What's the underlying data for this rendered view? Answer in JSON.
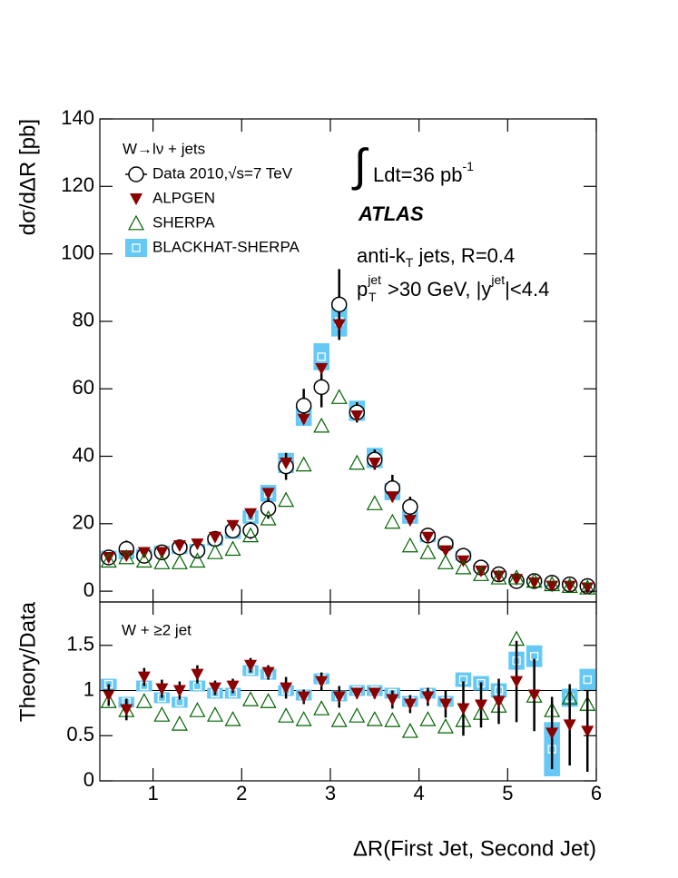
{
  "chart_data": [
    {
      "type": "scatter",
      "ylabel": "dσ/dΔR [pb]",
      "legend_title": "W→lν + jets",
      "annotations": {
        "lumi": [
          "∫",
          "Ldt=36 pb",
          "-1"
        ],
        "experiment": "ATLAS",
        "algo": [
          "anti-k",
          "T",
          " jets, R=0.4"
        ],
        "cuts": [
          "p",
          "jet",
          "T",
          ">30 GeV, |y",
          "jet",
          "|<4.4"
        ]
      },
      "x": [
        0.5,
        0.7,
        0.9,
        1.1,
        1.3,
        1.5,
        1.7,
        1.9,
        2.1,
        2.3,
        2.5,
        2.7,
        2.9,
        3.1,
        3.3,
        3.5,
        3.7,
        3.9,
        4.1,
        4.3,
        4.5,
        4.7,
        4.9,
        5.1,
        5.3,
        5.5,
        5.7,
        5.9
      ],
      "bins": [
        0.4,
        0.6,
        0.8,
        1.0,
        1.2,
        1.4,
        1.6,
        1.8,
        2.0,
        2.2,
        2.4,
        2.6,
        2.8,
        3.0,
        3.2,
        3.4,
        3.6,
        3.8,
        4.0,
        4.2,
        4.4,
        4.6,
        4.8,
        5.0,
        5.2,
        5.4,
        5.6,
        5.8,
        6.0
      ],
      "xlim": [
        0.4,
        6
      ],
      "xticks": [
        1,
        2,
        3,
        4,
        5,
        6
      ],
      "ylim": [
        -3.2,
        140
      ],
      "yticks": [
        0,
        20,
        40,
        60,
        80,
        100,
        120,
        140
      ],
      "series": [
        {
          "name": "Data 2010,√s=7 TeV",
          "marker": "circle",
          "color": "#000000",
          "values": [
            10,
            12.5,
            10.5,
            11.5,
            13,
            12,
            15.5,
            18,
            18,
            24.5,
            37,
            55,
            60.5,
            85,
            53,
            39,
            30.5,
            25,
            16.5,
            14,
            10.5,
            7,
            5,
            3,
            3,
            2.5,
            2,
            1.5
          ],
          "errors": [
            1.5,
            2.5,
            1.5,
            1.5,
            1.5,
            1.5,
            1.5,
            2,
            2.5,
            3,
            4,
            5,
            6,
            10.5,
            3,
            3,
            4,
            3,
            1.5,
            2,
            1.5,
            1,
            1,
            1,
            1,
            1,
            0.8,
            0.8
          ]
        },
        {
          "name": "ALPGEN",
          "marker": "triangle-down",
          "color": "#8b0000",
          "values": [
            10,
            10.5,
            11.5,
            11.5,
            13.5,
            14,
            16,
            19.5,
            23,
            29,
            38,
            51,
            66,
            79,
            52,
            38,
            28,
            21,
            16,
            12,
            9,
            6,
            4.5,
            3.5,
            2.5,
            1.5,
            1.5,
            1
          ]
        },
        {
          "name": "SHERPA",
          "marker": "triangle-up",
          "color": "#006400",
          "values": [
            9,
            10,
            9,
            8.5,
            8.5,
            9,
            11.5,
            12.5,
            16.5,
            21.5,
            27,
            37.5,
            49,
            57.5,
            38,
            26,
            20.5,
            13.5,
            11.5,
            8.5,
            7,
            5,
            4,
            4,
            3,
            2,
            1.5,
            1
          ]
        },
        {
          "name": "BLACKHAT-SHERPA",
          "marker": "band-square",
          "color": "#66c8f4",
          "values": [
            10.5,
            11,
            11,
            12,
            12.5,
            12.5,
            15,
            17.5,
            22,
            29,
            38,
            52,
            69.5,
            80,
            53.5,
            39.5,
            29.5,
            22,
            16,
            14,
            10.5,
            7,
            5,
            3,
            3,
            1.5,
            2,
            1.5
          ],
          "errors": [
            1.5,
            1.5,
            1.5,
            1.5,
            1.5,
            1.5,
            1.5,
            2,
            2,
            2.5,
            3,
            3,
            4,
            4.5,
            3,
            3,
            2.5,
            2,
            1.5,
            1.5,
            1.5,
            1,
            1,
            0.8,
            0.8,
            0.6,
            0.6,
            0.6
          ]
        }
      ]
    },
    {
      "type": "scatter",
      "ylabel": "Theory/Data",
      "xlabel": "ΔR(First Jet, Second Jet)",
      "annotation": "W + ≥2 jet",
      "x": [
        0.5,
        0.7,
        0.9,
        1.1,
        1.3,
        1.5,
        1.7,
        1.9,
        2.1,
        2.3,
        2.5,
        2.7,
        2.9,
        3.1,
        3.3,
        3.5,
        3.7,
        3.9,
        4.1,
        4.3,
        4.5,
        4.7,
        4.9,
        5.1,
        5.3,
        5.5,
        5.7,
        5.9
      ],
      "bins": [
        0.4,
        0.6,
        0.8,
        1.0,
        1.2,
        1.4,
        1.6,
        1.8,
        2.0,
        2.2,
        2.4,
        2.6,
        2.8,
        3.0,
        3.2,
        3.4,
        3.6,
        3.8,
        4.0,
        4.2,
        4.4,
        4.6,
        4.8,
        5.0,
        5.2,
        5.4,
        5.6,
        5.8,
        6.0
      ],
      "xlim": [
        0.4,
        6
      ],
      "xticks": [
        1,
        2,
        3,
        4,
        5,
        6
      ],
      "ylim": [
        0,
        1.98
      ],
      "yticks": [
        0,
        0.5,
        1,
        1.5
      ],
      "reference": 1,
      "series": [
        {
          "marker": "band-square",
          "color": "#66c8f4",
          "values": [
            1.07,
            0.87,
            1.05,
            0.92,
            0.87,
            1.05,
            0.97,
            0.97,
            1.22,
            1.18,
            1.0,
            0.95,
            1.13,
            0.94,
            1.0,
            1.0,
            0.97,
            0.88,
            0.97,
            0.88,
            1.12,
            1.08,
            1.0,
            1.33,
            1.38,
            0.35,
            0.92,
            1.12
          ],
          "errors": [
            0.06,
            0.06,
            0.06,
            0.06,
            0.06,
            0.06,
            0.06,
            0.06,
            0.06,
            0.06,
            0.06,
            0.06,
            0.06,
            0.06,
            0.06,
            0.06,
            0.06,
            0.06,
            0.06,
            0.06,
            0.08,
            0.08,
            0.08,
            0.1,
            0.12,
            0.3,
            0.1,
            0.12
          ]
        },
        {
          "marker": "triangle-up",
          "color": "#006400",
          "values": [
            0.88,
            0.78,
            0.88,
            0.73,
            0.63,
            0.78,
            0.73,
            0.68,
            0.9,
            0.88,
            0.72,
            0.68,
            0.8,
            0.67,
            0.72,
            0.68,
            0.67,
            0.55,
            0.68,
            0.6,
            0.67,
            0.75,
            0.83,
            1.57,
            0.94,
            0.78,
            0.92,
            0.85
          ]
        },
        {
          "marker": "triangle-down",
          "color": "#8b0000",
          "values": [
            0.95,
            0.79,
            1.15,
            1.02,
            1.0,
            1.18,
            1.03,
            1.05,
            1.28,
            1.2,
            1.03,
            0.93,
            1.1,
            0.93,
            0.97,
            0.97,
            0.9,
            0.85,
            0.93,
            0.85,
            0.8,
            0.84,
            0.88,
            1.1,
            0.95,
            0.53,
            0.62,
            0.55
          ],
          "errors": [
            0.12,
            0.12,
            0.1,
            0.1,
            0.1,
            0.1,
            0.08,
            0.08,
            0.08,
            0.08,
            0.12,
            0.08,
            0.1,
            0.12,
            0.06,
            0.06,
            0.1,
            0.1,
            0.1,
            0.15,
            0.3,
            0.25,
            0.25,
            0.45,
            0.4,
            0.4,
            0.45,
            0.45
          ]
        }
      ]
    }
  ]
}
